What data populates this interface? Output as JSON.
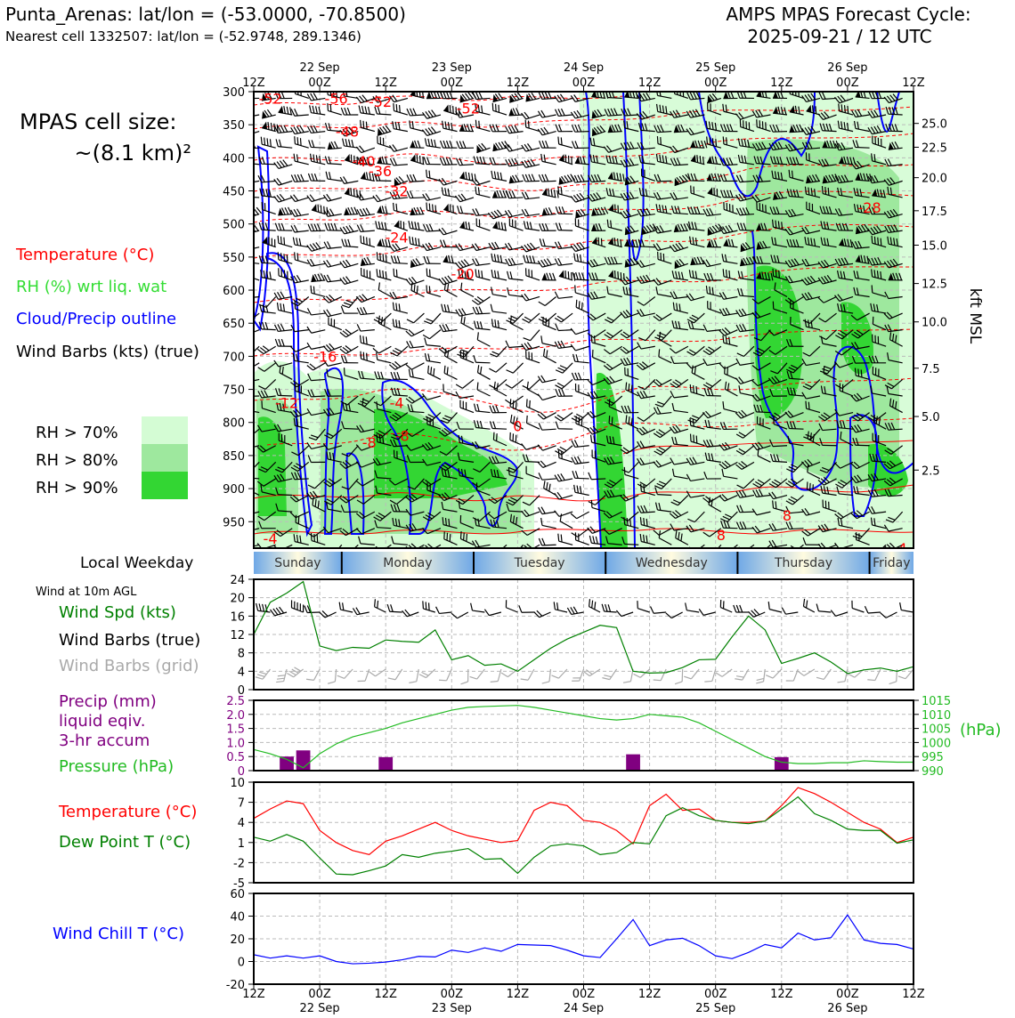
{
  "header": {
    "station_line": "Punta_Arenas: lat/lon = (-53.0000, -70.8500)",
    "cell_line": "Nearest cell 1332507: lat/lon = (-52.9748, 289.1346)",
    "forecast_title": "AMPS MPAS Forecast Cycle:",
    "forecast_cycle": "2025-09-21 / 12 UTC"
  },
  "left_panel": {
    "cell_size_label": "MPAS cell size:",
    "cell_size_value": "~(8.1 km)²",
    "legend_temperature": "Temperature (°C)",
    "legend_rh": "RH (%) wrt liq. wat",
    "legend_cloud": "Cloud/Precip outline",
    "legend_wind": "Wind Barbs (kts) (true)",
    "rh_levels": [
      {
        "label": "RH > 70%",
        "color": "#d4fcd4"
      },
      {
        "label": "RH > 80%",
        "color": "#9ee89e"
      },
      {
        "label": "RH > 90%",
        "color": "#33d633"
      }
    ],
    "local_weekday_label": "Local Weekday",
    "wind_10m_label": "Wind at 10m AGL",
    "wind_spd_label": "Wind Spd (kts)",
    "wind_barbs_true_label": "Wind Barbs (true)",
    "wind_barbs_grid_label": "Wind Barbs (grid)",
    "precip_label_1": "Precip (mm)",
    "precip_label_2": "liquid eqiv.",
    "precip_label_3": "3-hr accum",
    "pressure_label": "Pressure (hPa)",
    "temp_label": "Temperature (°C)",
    "dewpoint_label": "Dew Point T (°C)",
    "windchill_label": "Wind Chill T (°C)"
  },
  "time_axis": {
    "ticks": [
      "12Z",
      "00Z",
      "12Z",
      "00Z",
      "12Z",
      "00Z",
      "12Z",
      "00Z",
      "12Z",
      "00Z",
      "12Z"
    ],
    "hours": [
      0,
      12,
      24,
      36,
      48,
      60,
      72,
      84,
      96,
      108,
      120
    ],
    "dates": [
      {
        "label": "22 Sep",
        "hour": 12
      },
      {
        "label": "23 Sep",
        "hour": 36
      },
      {
        "label": "24 Sep",
        "hour": 60
      },
      {
        "label": "25 Sep",
        "hour": 84
      },
      {
        "label": "26 Sep",
        "hour": 108
      }
    ]
  },
  "weekdays": [
    {
      "label": "Sunday",
      "start": 0,
      "end": 16
    },
    {
      "label": "Monday",
      "start": 16,
      "end": 40
    },
    {
      "label": "Tuesday",
      "start": 40,
      "end": 64
    },
    {
      "label": "Wednesday",
      "start": 64,
      "end": 88
    },
    {
      "label": "Thursday",
      "start": 88,
      "end": 112
    },
    {
      "label": "Friday",
      "start": 112,
      "end": 120
    }
  ],
  "colors": {
    "temperature": "#ff0000",
    "rh": "#33d633",
    "cloud": "#0000ff",
    "pressure": "#22bb22",
    "precip": "#800080",
    "windspd": "#008000",
    "windchill": "#0000ff",
    "dewpoint": "#008000",
    "grid_barb": "#aaaaaa"
  },
  "chart_data": [
    {
      "type": "heatmap",
      "id": "cross_section",
      "ylabel_left_ticks": [
        "300",
        "350",
        "400",
        "450",
        "500",
        "550",
        "600",
        "650",
        "700",
        "750",
        "800",
        "850",
        "900",
        "950"
      ],
      "pressure_levels": [
        300,
        350,
        400,
        450,
        500,
        550,
        600,
        650,
        700,
        750,
        800,
        850,
        900,
        950
      ],
      "ylim": [
        300,
        990
      ],
      "ylabel_right": "kft MSL",
      "right_ticks": [
        {
          "label": "25.0",
          "p": 348
        },
        {
          "label": "22.5",
          "p": 384
        },
        {
          "label": "20.0",
          "p": 430
        },
        {
          "label": "17.5",
          "p": 480
        },
        {
          "label": "15.0",
          "p": 532
        },
        {
          "label": "12.5",
          "p": 590
        },
        {
          "label": "10.0",
          "p": 648
        },
        {
          "label": "7.5",
          "p": 718
        },
        {
          "label": "5.0",
          "p": 791
        },
        {
          "label": "2.5",
          "p": 872
        }
      ],
      "temperature_labels": [
        {
          "text": "-52",
          "hour": 3,
          "p": 310
        },
        {
          "text": "-56",
          "hour": 15,
          "p": 310
        },
        {
          "text": "-52",
          "hour": 23,
          "p": 315
        },
        {
          "text": "-52",
          "hour": 39,
          "p": 325
        },
        {
          "text": "-48",
          "hour": 17,
          "p": 360
        },
        {
          "text": "-40",
          "hour": 20,
          "p": 405
        },
        {
          "text": "-36",
          "hour": 23,
          "p": 420
        },
        {
          "text": "-32",
          "hour": 26,
          "p": 450
        },
        {
          "text": "-28",
          "hour": 112,
          "p": 475
        },
        {
          "text": "-24",
          "hour": 26,
          "p": 520
        },
        {
          "text": "-20",
          "hour": 38,
          "p": 575
        },
        {
          "text": "-16",
          "hour": 13,
          "p": 700
        },
        {
          "text": "-12",
          "hour": 6,
          "p": 770
        },
        {
          "text": "-8",
          "hour": 21,
          "p": 830
        },
        {
          "text": "-4",
          "hour": 26,
          "p": 770
        },
        {
          "text": "0",
          "hour": 48,
          "p": 805
        },
        {
          "text": "-8",
          "hour": 27,
          "p": 820
        },
        {
          "text": "8",
          "hour": 97,
          "p": 940
        },
        {
          "text": "-4",
          "hour": 3,
          "p": 975
        },
        {
          "text": "8",
          "hour": 85,
          "p": 970
        },
        {
          "text": "4",
          "hour": 118,
          "p": 990
        }
      ]
    },
    {
      "type": "line",
      "id": "wind_speed",
      "yticks": [
        "0",
        "4",
        "8",
        "12",
        "16",
        "20",
        "24"
      ],
      "ylim": [
        0,
        24
      ],
      "x": [
        0,
        3,
        6,
        9,
        12,
        15,
        18,
        21,
        24,
        27,
        30,
        33,
        36,
        39,
        42,
        45,
        48,
        51,
        54,
        57,
        60,
        63,
        66,
        69,
        72,
        75,
        78,
        81,
        84,
        87,
        90,
        93,
        96,
        99,
        102,
        105,
        108,
        111,
        114,
        117,
        120
      ],
      "values": [
        12,
        19,
        21,
        23.5,
        9.5,
        8.5,
        9.2,
        9,
        10.8,
        10.5,
        10.3,
        13,
        6.5,
        7.4,
        5.3,
        5.6,
        4,
        6.5,
        9,
        11,
        12.5,
        14,
        13.5,
        4,
        3.6,
        3.7,
        4.8,
        6.5,
        6.6,
        11.5,
        16,
        13,
        5.7,
        6.8,
        8,
        6,
        3.5,
        4.3,
        4.7,
        4,
        5
      ]
    },
    {
      "type": "bar",
      "id": "precip_pressure",
      "precip_yticks": [
        "0",
        "0.5",
        "1.0",
        "1.5",
        "2.0",
        "2.5"
      ],
      "precip_ylim": [
        0,
        2.5
      ],
      "pressure_yticks": [
        "990",
        "995",
        "1000",
        "1005",
        "1010",
        "1015"
      ],
      "pressure_ylim": [
        990,
        1015
      ],
      "pressure_unit": "(hPa)",
      "precip_x": [
        6,
        9,
        24,
        69,
        96
      ],
      "precip_values": [
        0.5,
        0.72,
        0.48,
        0.58,
        0.48
      ],
      "pressure_x": [
        0,
        3,
        6,
        9,
        12,
        15,
        18,
        21,
        24,
        27,
        30,
        33,
        36,
        39,
        42,
        45,
        48,
        51,
        54,
        57,
        60,
        63,
        66,
        69,
        72,
        75,
        78,
        81,
        84,
        87,
        90,
        93,
        96,
        99,
        102,
        105,
        108,
        111,
        114,
        117,
        120
      ],
      "pressure_values": [
        997.5,
        996,
        994,
        991,
        996,
        999.5,
        1002,
        1003.5,
        1005,
        1007,
        1008.5,
        1010,
        1011.5,
        1012.5,
        1012.8,
        1013,
        1013.2,
        1012.5,
        1011.5,
        1010.5,
        1009.5,
        1008.5,
        1008,
        1008.5,
        1010,
        1009.5,
        1009,
        1007,
        1004,
        1001,
        998,
        995,
        993,
        992.5,
        992.5,
        992.8,
        992.8,
        993.5,
        993.2,
        993,
        993
      ]
    },
    {
      "type": "line",
      "id": "temperature_dewpoint",
      "yticks": [
        "-5",
        "-2",
        "1",
        "4",
        "7",
        "10"
      ],
      "ylim": [
        -5,
        10
      ],
      "x": [
        0,
        3,
        6,
        9,
        12,
        15,
        18,
        21,
        24,
        27,
        30,
        33,
        36,
        39,
        42,
        45,
        48,
        51,
        54,
        57,
        60,
        63,
        66,
        69,
        72,
        75,
        78,
        81,
        84,
        87,
        90,
        93,
        96,
        99,
        102,
        105,
        108,
        111,
        114,
        117,
        120
      ],
      "series": [
        {
          "name": "Temperature",
          "values": [
            4.6,
            6,
            7.2,
            6.8,
            2.8,
            1,
            -0.2,
            -0.8,
            1.2,
            2,
            3,
            4,
            2.8,
            2,
            1.5,
            1,
            1.3,
            5.8,
            7,
            6.5,
            4.3,
            4,
            2.8,
            0.8,
            6.5,
            8.2,
            5.8,
            6,
            4.3,
            4,
            4,
            4.2,
            6.5,
            9.2,
            8.3,
            7,
            5.5,
            4,
            3,
            1,
            1.8
          ]
        },
        {
          "name": "Dew Point",
          "values": [
            1.8,
            1.2,
            2.2,
            1.2,
            -1.3,
            -3.7,
            -3.8,
            -3.2,
            -2.5,
            -0.8,
            -1.2,
            -0.6,
            -0.3,
            0.1,
            -1.5,
            -1.4,
            -3.6,
            -1.2,
            0.5,
            0.8,
            0.5,
            -0.8,
            -0.5,
            1,
            0.8,
            5,
            6.2,
            5,
            4.3,
            4,
            3.8,
            4.2,
            6,
            7.8,
            5.3,
            4.3,
            3,
            2.8,
            2.8,
            0.9,
            1.4
          ]
        }
      ]
    },
    {
      "type": "line",
      "id": "wind_chill",
      "yticks": [
        "-20",
        "0",
        "20",
        "40",
        "60"
      ],
      "ylim": [
        -20,
        60
      ],
      "x": [
        0,
        3,
        6,
        9,
        12,
        15,
        18,
        21,
        24,
        27,
        30,
        33,
        36,
        39,
        42,
        45,
        48,
        51,
        54,
        57,
        60,
        63,
        66,
        69,
        72,
        75,
        78,
        81,
        84,
        87,
        90,
        93,
        96,
        99,
        102,
        105,
        108,
        111,
        114,
        117,
        120
      ],
      "values": [
        6,
        3,
        5,
        3,
        5,
        0,
        -2,
        -1.5,
        -0.5,
        1.5,
        4.5,
        4,
        10,
        8,
        12,
        9,
        15,
        14.5,
        14,
        10,
        5,
        3.5,
        20,
        37,
        14,
        19,
        20.5,
        14,
        5,
        2.5,
        8,
        15,
        12,
        25,
        19,
        21,
        41,
        19,
        16,
        15,
        11
      ]
    }
  ]
}
